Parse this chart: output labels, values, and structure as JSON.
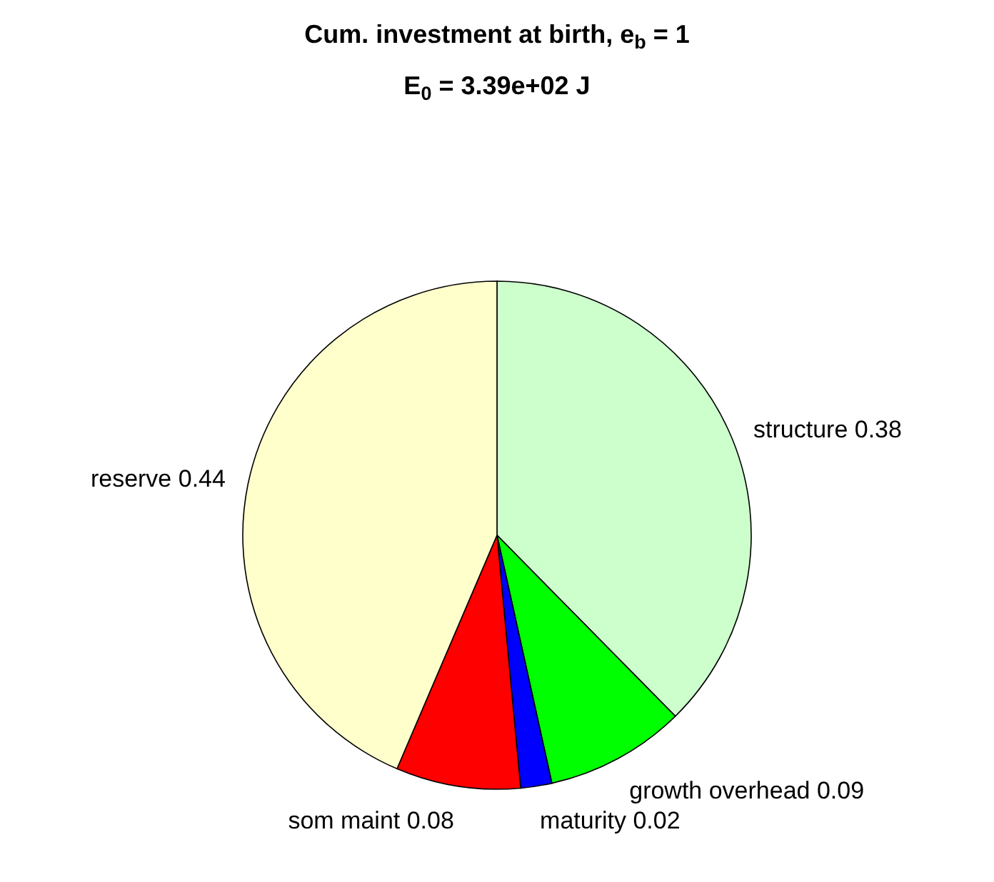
{
  "chart_data": {
    "type": "pie",
    "title": "Cum. investment at birth, e$_{b}$ = 1",
    "subtitle": "E$_{0}$ = 3.39e+02 J",
    "categories": [
      "structure 0.38",
      "growth overhead 0.09",
      "maturity 0.02",
      "som maint 0.08",
      "reserve 0.44"
    ],
    "values": [
      0.38,
      0.09,
      0.02,
      0.08,
      0.44
    ],
    "colors": [
      "#ccffcc",
      "#00ff00",
      "#0000ff",
      "#ff0000",
      "#ffffcc"
    ]
  }
}
